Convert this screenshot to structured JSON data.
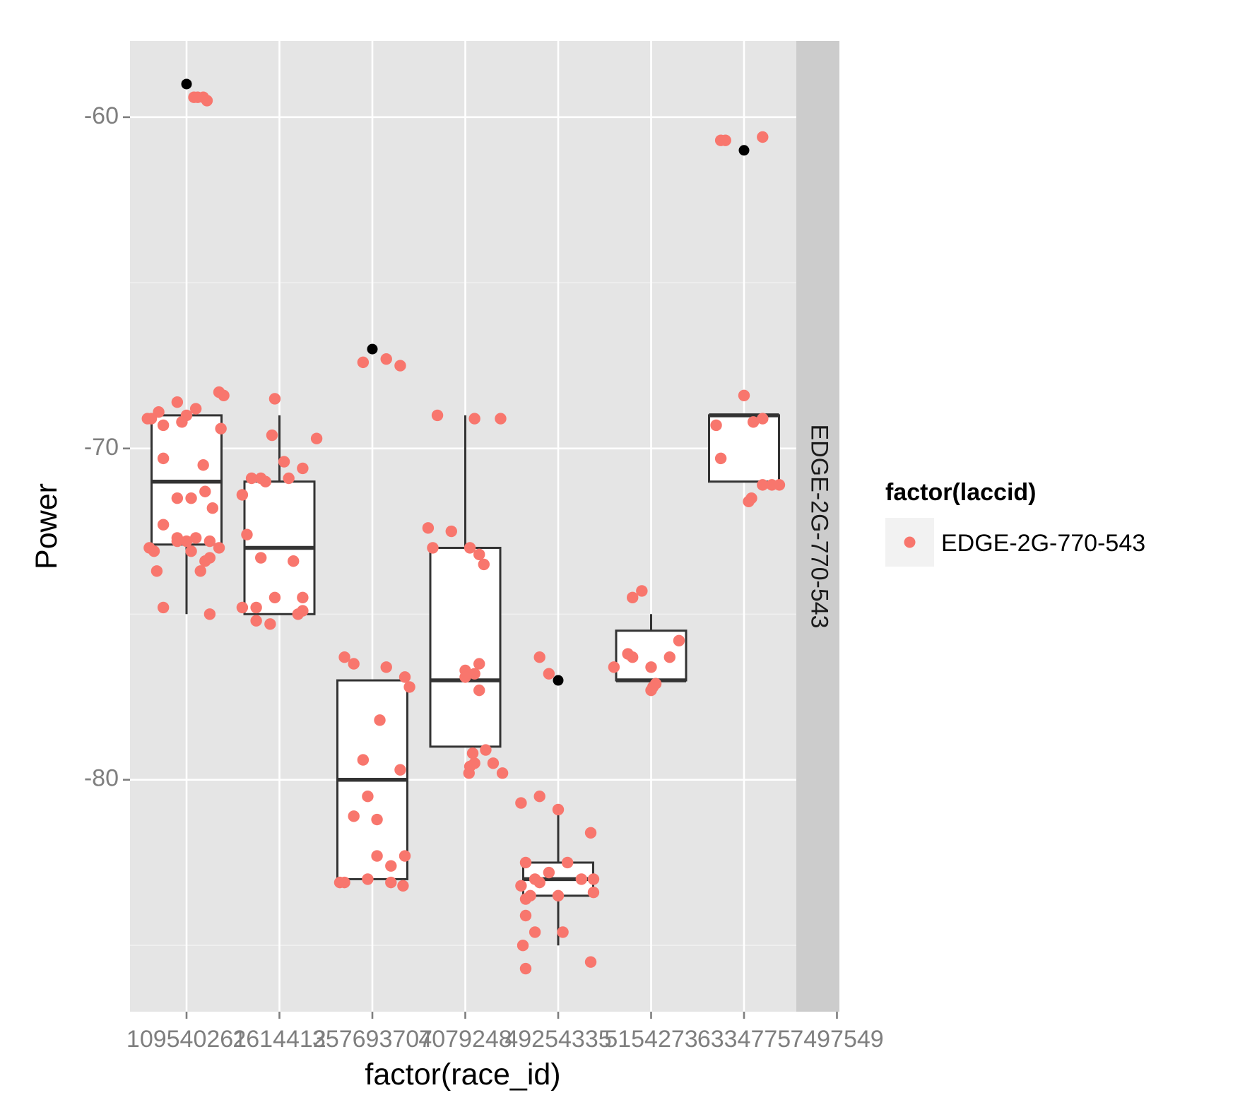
{
  "chart_data": {
    "type": "boxplot",
    "xlabel": "factor(race_id)",
    "ylabel": "Power",
    "facet_label": "EDGE-2G-770-543",
    "legend": {
      "title": "factor(laccid)",
      "entries": [
        "EDGE-2G-770-543"
      ],
      "placement": "right"
    },
    "ylim": [
      -87.0,
      -57.7
    ],
    "y_ticks": [
      -60,
      -70,
      -80
    ],
    "colors": {
      "points": "#f8766d",
      "outliers": "#000000",
      "panel_bg": "#e5e5e5",
      "grid": "#ffffff",
      "strip_bg": "#cccccc",
      "box_line": "#333333"
    },
    "categories": [
      "1095402",
      "2614412",
      "3576937",
      "4079248",
      "4925433",
      "5154273",
      "6334775",
      "7497549"
    ],
    "category_display": [
      {
        "name": "1095402",
        "label_text": "109540261"
      },
      {
        "name": "2614412",
        "label_text": "2614412"
      },
      {
        "name": "3576937",
        "label_text": "357693707"
      },
      {
        "name": "4079248",
        "label_text": "4079248"
      },
      {
        "name": "4925433",
        "label_text": "49254335"
      },
      {
        "name": "5154273",
        "label_text": "5154273"
      },
      {
        "name": "6334775",
        "label_text": "6334775"
      },
      {
        "name": "7497549",
        "label_text": "7497549"
      }
    ],
    "boxes": [
      {
        "category": "1095402",
        "q1": -72.9,
        "median": -71.0,
        "q3": -69.0,
        "whisker_low": -75.0,
        "whisker_high": -69.0,
        "outliers": [
          -59.0
        ],
        "points": [
          [
            -0.38,
            -69.1
          ],
          [
            -0.3,
            -68.9
          ],
          [
            -0.42,
            -69.1
          ],
          [
            -0.25,
            -69.3
          ],
          [
            -0.1,
            -68.6
          ],
          [
            0.0,
            -69.0
          ],
          [
            0.1,
            -68.8
          ],
          [
            -0.05,
            -69.2
          ],
          [
            0.35,
            -68.3
          ],
          [
            0.4,
            -68.4
          ],
          [
            0.37,
            -69.4
          ],
          [
            -0.25,
            -70.3
          ],
          [
            0.18,
            -70.5
          ],
          [
            -0.1,
            -71.5
          ],
          [
            0.05,
            -71.5
          ],
          [
            0.2,
            -71.3
          ],
          [
            0.28,
            -71.8
          ],
          [
            -0.25,
            -72.3
          ],
          [
            -0.1,
            -72.7
          ],
          [
            0.0,
            -72.8
          ],
          [
            0.1,
            -72.7
          ],
          [
            0.25,
            -72.8
          ],
          [
            -0.4,
            -73.0
          ],
          [
            -0.35,
            -73.1
          ],
          [
            0.05,
            -73.1
          ],
          [
            0.2,
            -73.4
          ],
          [
            0.25,
            -73.3
          ],
          [
            0.35,
            -73.0
          ],
          [
            -0.32,
            -73.7
          ],
          [
            0.15,
            -73.7
          ],
          [
            -0.25,
            -74.8
          ],
          [
            0.25,
            -75.0
          ],
          [
            -0.1,
            -72.8
          ],
          [
            0.08,
            -59.4
          ],
          [
            0.12,
            -59.4
          ],
          [
            0.18,
            -59.4
          ],
          [
            0.22,
            -59.5
          ]
        ]
      },
      {
        "category": "2614412",
        "q1": -75.0,
        "median": -73.0,
        "q3": -71.0,
        "whisker_low": -75.0,
        "whisker_high": -69.0,
        "outliers": [],
        "points": [
          [
            -0.05,
            -68.5
          ],
          [
            -0.08,
            -69.6
          ],
          [
            0.4,
            -69.7
          ],
          [
            0.05,
            -70.4
          ],
          [
            0.25,
            -70.6
          ],
          [
            -0.3,
            -70.9
          ],
          [
            -0.2,
            -70.9
          ],
          [
            -0.15,
            -71.0
          ],
          [
            0.1,
            -70.9
          ],
          [
            -0.4,
            -71.4
          ],
          [
            -0.35,
            -72.6
          ],
          [
            -0.2,
            -73.3
          ],
          [
            0.15,
            -73.4
          ],
          [
            -0.05,
            -74.5
          ],
          [
            0.25,
            -74.5
          ],
          [
            -0.4,
            -74.8
          ],
          [
            -0.25,
            -74.8
          ],
          [
            0.25,
            -74.9
          ],
          [
            0.2,
            -75.0
          ],
          [
            -0.25,
            -75.2
          ],
          [
            -0.1,
            -75.3
          ]
        ]
      },
      {
        "category": "3576937",
        "q1": -83.0,
        "median": -80.0,
        "q3": -77.0,
        "whisker_low": -83.0,
        "whisker_high": -77.0,
        "outliers": [
          -67.0
        ],
        "points": [
          [
            -0.1,
            -67.4
          ],
          [
            0.15,
            -67.3
          ],
          [
            0.3,
            -67.5
          ],
          [
            -0.3,
            -76.3
          ],
          [
            -0.2,
            -76.5
          ],
          [
            0.15,
            -76.6
          ],
          [
            0.35,
            -76.9
          ],
          [
            0.4,
            -77.2
          ],
          [
            0.08,
            -78.2
          ],
          [
            -0.1,
            -79.4
          ],
          [
            0.3,
            -79.7
          ],
          [
            -0.05,
            -80.5
          ],
          [
            -0.2,
            -81.1
          ],
          [
            0.05,
            -81.2
          ],
          [
            0.05,
            -82.3
          ],
          [
            0.2,
            -82.6
          ],
          [
            0.35,
            -82.3
          ],
          [
            -0.35,
            -83.1
          ],
          [
            -0.3,
            -83.1
          ],
          [
            -0.05,
            -83.0
          ],
          [
            0.2,
            -83.1
          ],
          [
            0.33,
            -83.2
          ]
        ]
      },
      {
        "category": "4079248",
        "q1": -79.0,
        "median": -77.0,
        "q3": -73.0,
        "whisker_low": -79.0,
        "whisker_high": -69.0,
        "outliers": [],
        "points": [
          [
            -0.3,
            -69.0
          ],
          [
            0.1,
            -69.1
          ],
          [
            0.38,
            -69.1
          ],
          [
            -0.4,
            -72.4
          ],
          [
            -0.15,
            -72.5
          ],
          [
            -0.35,
            -73.0
          ],
          [
            0.05,
            -73.0
          ],
          [
            0.15,
            -73.2
          ],
          [
            0.2,
            -73.5
          ],
          [
            0.0,
            -76.7
          ],
          [
            0.15,
            -76.5
          ],
          [
            0.0,
            -76.9
          ],
          [
            0.1,
            -76.8
          ],
          [
            0.15,
            -77.3
          ],
          [
            0.08,
            -79.2
          ],
          [
            0.22,
            -79.1
          ],
          [
            0.3,
            -79.5
          ],
          [
            0.05,
            -79.6
          ],
          [
            0.4,
            -79.8
          ],
          [
            0.04,
            -79.8
          ],
          [
            0.1,
            -79.5
          ]
        ]
      },
      {
        "category": "4925433",
        "q1": -83.5,
        "median": -83.0,
        "q3": -82.5,
        "whisker_low": -85.0,
        "whisker_high": -81.0,
        "outliers": [
          -77.0
        ],
        "points": [
          [
            -0.2,
            -76.3
          ],
          [
            -0.1,
            -76.8
          ],
          [
            -0.4,
            -80.7
          ],
          [
            -0.2,
            -80.5
          ],
          [
            0.0,
            -80.9
          ],
          [
            0.35,
            -81.6
          ],
          [
            -0.35,
            -82.5
          ],
          [
            -0.1,
            -82.8
          ],
          [
            0.1,
            -82.5
          ],
          [
            -0.25,
            -83.0
          ],
          [
            -0.4,
            -83.2
          ],
          [
            -0.2,
            -83.1
          ],
          [
            0.25,
            -83.0
          ],
          [
            0.0,
            -83.5
          ],
          [
            0.38,
            -83.0
          ],
          [
            0.38,
            -83.4
          ],
          [
            -0.35,
            -83.6
          ],
          [
            -0.3,
            -83.5
          ],
          [
            -0.35,
            -84.1
          ],
          [
            -0.25,
            -84.6
          ],
          [
            -0.38,
            -85.0
          ],
          [
            0.05,
            -84.6
          ],
          [
            0.35,
            -85.5
          ],
          [
            -0.35,
            -85.7
          ]
        ]
      },
      {
        "category": "5154273",
        "q1": -77.0,
        "median": -77.0,
        "q3": -75.5,
        "whisker_low": -77.0,
        "whisker_high": -75.0,
        "outliers": [],
        "points": [
          [
            -0.2,
            -74.5
          ],
          [
            -0.1,
            -74.3
          ],
          [
            0.3,
            -75.8
          ],
          [
            -0.4,
            -76.6
          ],
          [
            -0.25,
            -76.2
          ],
          [
            -0.2,
            -76.3
          ],
          [
            0.0,
            -76.6
          ],
          [
            0.2,
            -76.3
          ],
          [
            0.05,
            -77.1
          ],
          [
            0.0,
            -77.3
          ],
          [
            0.02,
            -77.2
          ]
        ]
      },
      {
        "category": "6334775",
        "q1": -71.0,
        "median": -69.0,
        "q3": -69.0,
        "whisker_low": -71.0,
        "whisker_high": -69.0,
        "outliers": [
          -61.0
        ],
        "points": [
          [
            -0.25,
            -60.7
          ],
          [
            -0.2,
            -60.7
          ],
          [
            0.2,
            -60.6
          ],
          [
            0.0,
            -68.4
          ],
          [
            -0.3,
            -69.3
          ],
          [
            0.1,
            -69.2
          ],
          [
            0.2,
            -69.1
          ],
          [
            -0.25,
            -70.3
          ],
          [
            0.2,
            -71.1
          ],
          [
            0.3,
            -71.1
          ],
          [
            0.38,
            -71.1
          ],
          [
            0.08,
            -71.5
          ],
          [
            0.05,
            -71.6
          ]
        ]
      },
      {
        "category": "7497549",
        "q1": null,
        "median": null,
        "q3": null,
        "whisker_low": null,
        "whisker_high": null,
        "outliers": [],
        "points": []
      }
    ]
  }
}
